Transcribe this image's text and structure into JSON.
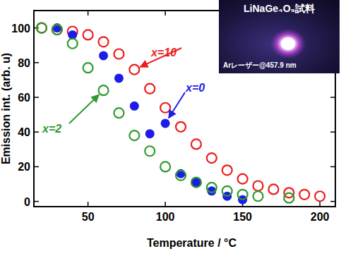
{
  "chart_data": {
    "type": "scatter",
    "x_label": "Temperature / °C",
    "y_label": "Emission int. (arb. u)",
    "xlim": [
      15,
      210
    ],
    "xticks": [
      50,
      100,
      150,
      200
    ],
    "ylim": [
      -3,
      110
    ],
    "yticks": [
      0,
      20,
      40,
      60,
      80,
      100
    ],
    "grid": false,
    "series": [
      {
        "name": "x=10",
        "color": "#ee1c1c",
        "marker": "open-circle",
        "x": [
          20,
          30,
          40,
          50,
          60,
          70,
          80,
          90,
          100,
          110,
          120,
          130,
          140,
          150,
          160,
          170,
          180,
          190,
          200
        ],
        "values": [
          100,
          99,
          98,
          96,
          92,
          85,
          76,
          65,
          54,
          43,
          33,
          25,
          18,
          13,
          9,
          7,
          5,
          4,
          3
        ]
      },
      {
        "name": "x=0",
        "color": "#1c1ce6",
        "marker": "filled-circle",
        "x": [
          30,
          40,
          60,
          70,
          80,
          90,
          100,
          110,
          120,
          130,
          140,
          150
        ],
        "values": [
          100,
          96,
          84,
          71,
          55,
          39,
          45,
          16,
          11,
          6,
          3,
          1
        ]
      },
      {
        "name": "x=2",
        "color": "#2e9a2e",
        "marker": "open-circle",
        "x": [
          20,
          30,
          40,
          50,
          60,
          70,
          80,
          90,
          100,
          110,
          120,
          130,
          140,
          150,
          160,
          180
        ],
        "values": [
          100,
          99,
          91,
          77,
          64,
          51,
          38,
          29,
          20,
          15,
          11,
          8,
          6,
          4,
          3,
          2
        ]
      }
    ],
    "annotations": [
      {
        "text": "x=10",
        "color": "#ee1c1c"
      },
      {
        "text": "x=0",
        "color": "#1c1ce6"
      },
      {
        "text": "x=2",
        "color": "#2e9a2e"
      }
    ],
    "inset": {
      "title": "LiNaGe₄O₉試料",
      "caption": "Arレーザー@457.9 nm"
    }
  }
}
